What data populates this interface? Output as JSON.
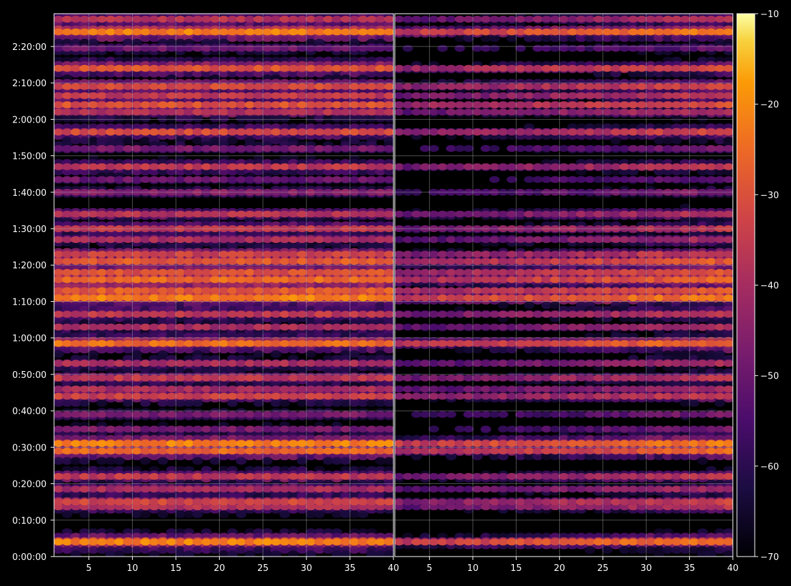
{
  "chart_data": {
    "type": "heatmap",
    "title": "",
    "colormap": "inferno",
    "background": "#000000",
    "grid": true,
    "panels": [
      {
        "name": "",
        "xlim": [
          1,
          40
        ],
        "xticks": [
          5,
          10,
          15,
          20,
          25,
          30,
          35,
          40
        ]
      },
      {
        "name": "",
        "xlim": [
          1,
          40
        ],
        "xticks": [
          5,
          10,
          15,
          20,
          25,
          30,
          35,
          40
        ]
      }
    ],
    "x_tick_labels": [
      "5",
      "10",
      "15",
      "20",
      "25",
      "30",
      "35",
      "40"
    ],
    "y_axis": {
      "unit": "time",
      "range_seconds": [
        0,
        8940
      ],
      "ticks": [
        "0:00:00",
        "0:10:00",
        "0:20:00",
        "0:30:00",
        "0:40:00",
        "0:50:00",
        "1:00:00",
        "1:10:00",
        "1:20:00",
        "1:30:00",
        "1:40:00",
        "1:50:00",
        "2:00:00",
        "2:10:00",
        "2:20:00"
      ]
    },
    "colorbar": {
      "range": [
        -70,
        -10
      ],
      "ticks": [
        "−10",
        "−20",
        "−30",
        "−40",
        "−50",
        "−60",
        "−70"
      ],
      "tick_values": [
        -10,
        -20,
        -30,
        -40,
        -50,
        -60,
        -70
      ]
    },
    "bands": [
      {
        "t": "0:04:00",
        "level": -22
      },
      {
        "t": "0:13:40",
        "level": -38
      },
      {
        "t": "0:15:00",
        "level": -33
      },
      {
        "t": "0:18:30",
        "level": -40
      },
      {
        "t": "0:22:00",
        "level": -36
      },
      {
        "t": "0:29:00",
        "level": -26
      },
      {
        "t": "0:31:00",
        "level": -22
      },
      {
        "t": "0:35:00",
        "level": -48
      },
      {
        "t": "0:39:00",
        "level": -48
      },
      {
        "t": "0:44:00",
        "level": -34
      },
      {
        "t": "0:46:00",
        "level": -40
      },
      {
        "t": "0:49:00",
        "level": -36
      },
      {
        "t": "0:53:00",
        "level": -40
      },
      {
        "t": "0:58:30",
        "level": -25
      },
      {
        "t": "1:03:00",
        "level": -40
      },
      {
        "t": "1:06:30",
        "level": -36
      },
      {
        "t": "1:11:00",
        "level": -22
      },
      {
        "t": "1:13:00",
        "level": -28
      },
      {
        "t": "1:16:00",
        "level": -26
      },
      {
        "t": "1:18:00",
        "level": -30
      },
      {
        "t": "1:21:00",
        "level": -28
      },
      {
        "t": "1:23:00",
        "level": -34
      },
      {
        "t": "1:27:00",
        "level": -40
      },
      {
        "t": "1:30:00",
        "level": -36
      },
      {
        "t": "1:34:00",
        "level": -38
      },
      {
        "t": "1:40:00",
        "level": -46
      },
      {
        "t": "1:43:30",
        "level": -50
      },
      {
        "t": "1:47:00",
        "level": -36
      },
      {
        "t": "1:52:00",
        "level": -48
      },
      {
        "t": "1:56:30",
        "level": -32
      },
      {
        "t": "2:02:00",
        "level": -38
      },
      {
        "t": "2:04:00",
        "level": -30
      },
      {
        "t": "2:06:30",
        "level": -36
      },
      {
        "t": "2:09:00",
        "level": -32
      },
      {
        "t": "2:14:00",
        "level": -30
      },
      {
        "t": "2:19:30",
        "level": -50
      },
      {
        "t": "2:24:00",
        "level": -22
      },
      {
        "t": "2:27:30",
        "level": -38
      }
    ]
  }
}
